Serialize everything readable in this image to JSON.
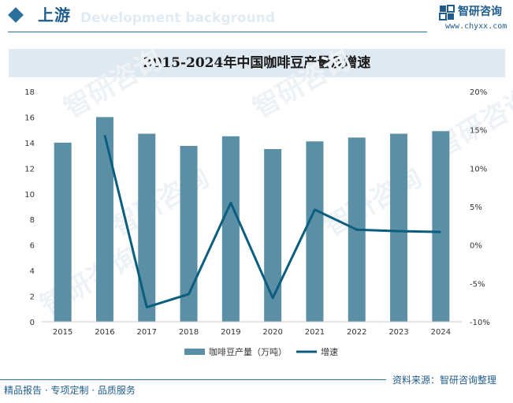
{
  "header": {
    "section_title": "上游",
    "watermark_text": "Development background",
    "brand_name": "智研咨询",
    "brand_url": "www.chyxx.com",
    "brand_color": "#1f5c8c"
  },
  "footer": {
    "source": "资料来源：智研咨询整理",
    "slogan": "精品报告 · 专项定制 · 品质服务"
  },
  "chart_data": {
    "type": "bar",
    "title": "2015-2024年中国咖啡豆产量及增速",
    "categories": [
      "2015",
      "2016",
      "2017",
      "2018",
      "2019",
      "2020",
      "2021",
      "2022",
      "2023",
      "2024"
    ],
    "series": [
      {
        "name": "咖啡豆产量（万吨）",
        "type": "bar",
        "axis": "left",
        "color": "#5a8fa6",
        "values": [
          14.0,
          16.0,
          14.7,
          13.75,
          14.5,
          13.5,
          14.1,
          14.4,
          14.7,
          14.9
        ]
      },
      {
        "name": "增速",
        "type": "line",
        "axis": "right",
        "color": "#0b5e7e",
        "values": [
          null,
          14.3,
          -8.1,
          -6.4,
          5.5,
          -6.9,
          4.6,
          2.0,
          1.8,
          1.7
        ]
      }
    ],
    "y_left": {
      "min": 0,
      "max": 18,
      "ticks": [
        "0",
        "2",
        "4",
        "6",
        "8",
        "10",
        "12",
        "14",
        "16",
        "18"
      ]
    },
    "y_right": {
      "min": -10,
      "max": 20,
      "ticks": [
        "-10%",
        "-5%",
        "0%",
        "5%",
        "10%",
        "15%",
        "20%"
      ]
    },
    "grid": false,
    "legend_position": "bottom"
  }
}
